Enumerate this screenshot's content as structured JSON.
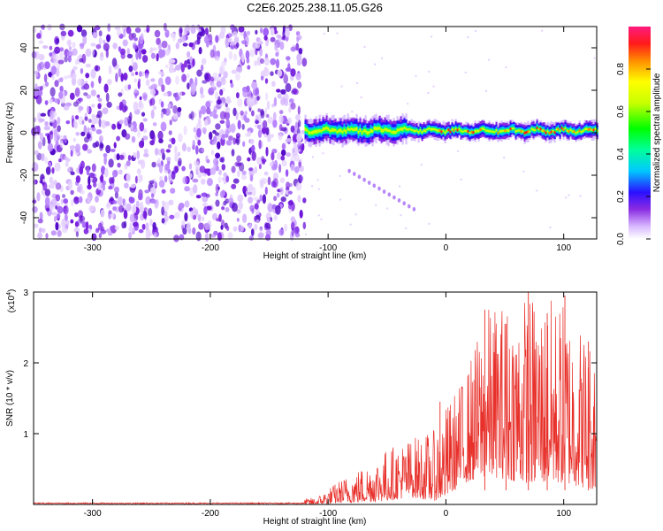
{
  "title": "C2E6.2025.238.11.05.G26",
  "colors": {
    "snr_line": "#e8302a",
    "noise_cloud": "#7a1fe0",
    "axis": "#000000"
  },
  "chart_data": [
    {
      "type": "heatmap",
      "xlabel": "Height of straight line (km)",
      "ylabel": "Frequency (Hz)",
      "xlim": [
        -350,
        128
      ],
      "ylim": [
        -50,
        50
      ],
      "xticks": [
        -300,
        -200,
        -100,
        0,
        100
      ],
      "xtick_labels": [
        "-300",
        "-200",
        "-100",
        "0",
        "100"
      ],
      "yticks": [
        40,
        20,
        0,
        -20,
        -40
      ],
      "ytick_labels": [
        "40",
        "20",
        "0",
        "-20",
        "-40"
      ],
      "noise_region_x": [
        -350,
        -120
      ],
      "signal_band_center_hz": 1,
      "signal_band_halfwidth_hz": 5,
      "signal_band_x": [
        -120,
        128
      ],
      "colorbar": {
        "label": "Normalized spectral amplitude",
        "range": [
          0,
          1
        ],
        "ticks": [
          0.0,
          0.2,
          0.4,
          0.6,
          0.8
        ],
        "tick_labels": [
          "0.0",
          "0.2",
          "0.4",
          "0.6",
          "0.8"
        ]
      }
    },
    {
      "type": "line",
      "xlabel": "Height of straight line (km)",
      "ylabel": "SNR (10 * v/v)",
      "scale_label": "(x10",
      "scale_exponent": "4",
      "scale_close": ")",
      "xlim": [
        -350,
        128
      ],
      "ylim": [
        0,
        3
      ],
      "xticks": [
        -300,
        -200,
        -100,
        0,
        100
      ],
      "xtick_labels": [
        "-300",
        "-200",
        "-100",
        "0",
        "100"
      ],
      "yticks": [
        1,
        2,
        3
      ],
      "ytick_labels": [
        "1",
        "2",
        "3"
      ],
      "series": [
        {
          "name": "SNR",
          "envelope": [
            {
              "x": -350,
              "low": 0.0,
              "high": 0.03
            },
            {
              "x": -150,
              "low": 0.0,
              "high": 0.03
            },
            {
              "x": -110,
              "low": 0.0,
              "high": 0.1
            },
            {
              "x": -90,
              "low": 0.02,
              "high": 0.35
            },
            {
              "x": -70,
              "low": 0.03,
              "high": 0.55
            },
            {
              "x": -50,
              "low": 0.05,
              "high": 0.8
            },
            {
              "x": -30,
              "low": 0.1,
              "high": 0.95
            },
            {
              "x": -10,
              "low": 0.05,
              "high": 1.05
            },
            {
              "x": 0,
              "low": 0.1,
              "high": 1.4
            },
            {
              "x": 15,
              "low": 0.3,
              "high": 1.8
            },
            {
              "x": 35,
              "low": 0.4,
              "high": 2.8
            },
            {
              "x": 70,
              "low": 0.3,
              "high": 3.0
            },
            {
              "x": 100,
              "low": 0.3,
              "high": 2.9
            },
            {
              "x": 128,
              "low": 0.2,
              "high": 2.3
            }
          ],
          "peaks": [
            {
              "x": -5,
              "y": 1.45
            },
            {
              "x": 33,
              "y": 2.75
            },
            {
              "x": 51,
              "y": 2.55
            },
            {
              "x": 70,
              "y": 3.0
            },
            {
              "x": 86,
              "y": 2.7
            },
            {
              "x": 101,
              "y": 2.95
            },
            {
              "x": 121,
              "y": 2.3
            }
          ]
        }
      ]
    }
  ]
}
